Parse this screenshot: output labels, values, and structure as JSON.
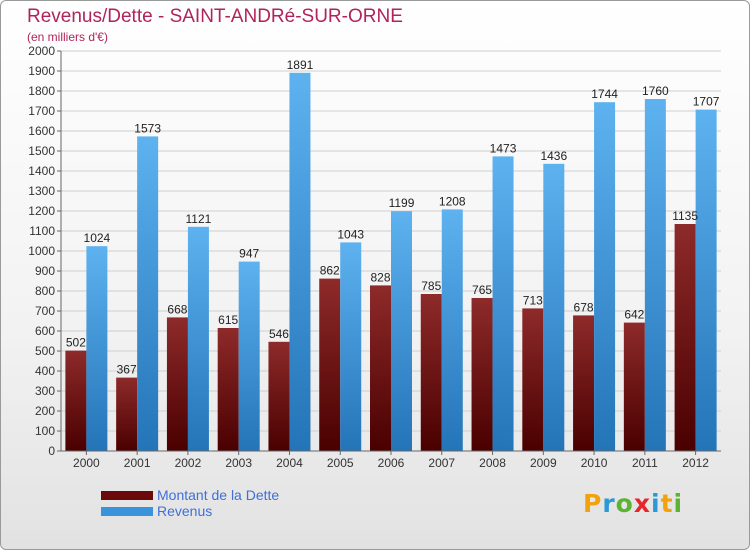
{
  "header": {
    "title": "Revenus/Dette - SAINT-ANDRé-SUR-ORNE",
    "subtitle": "(en milliers d'€)"
  },
  "legend": {
    "items": [
      {
        "label": "Montant de la Dette",
        "color": "#6b0a0a"
      },
      {
        "label": "Revenus",
        "color": "#3a94dc"
      }
    ]
  },
  "logo": {
    "letters": [
      "P",
      "r",
      "o",
      "x",
      "i",
      "t",
      "i"
    ],
    "colors": [
      "#f2a20c",
      "#2a9ad6",
      "#59b430",
      "#e8262a",
      "#2a9ad6",
      "#f2a20c",
      "#59b430"
    ]
  },
  "chart_data": {
    "type": "bar",
    "title": "Revenus/Dette - SAINT-ANDRé-SUR-ORNE",
    "ylabel": "(en milliers d'€)",
    "xlabel": "",
    "categories": [
      "2000",
      "2001",
      "2002",
      "2003",
      "2004",
      "2005",
      "2006",
      "2007",
      "2008",
      "2009",
      "2010",
      "2011",
      "2012"
    ],
    "series": [
      {
        "name": "Montant de la Dette",
        "values": [
          502,
          367,
          668,
          615,
          546,
          862,
          828,
          785,
          765,
          713,
          678,
          642,
          1135
        ]
      },
      {
        "name": "Revenus",
        "values": [
          1024,
          1573,
          1121,
          947,
          1891,
          1043,
          1199,
          1208,
          1473,
          1436,
          1744,
          1760,
          1707
        ]
      }
    ],
    "ylim": [
      0,
      2000
    ],
    "ytick_step": 100,
    "grid": true,
    "legend_position": "bottom-left",
    "colors": {
      "debt_top": "#8e2a2a",
      "debt_bottom": "#4a0000",
      "rev_top": "#5db2ef",
      "rev_bottom": "#2474b8"
    }
  }
}
